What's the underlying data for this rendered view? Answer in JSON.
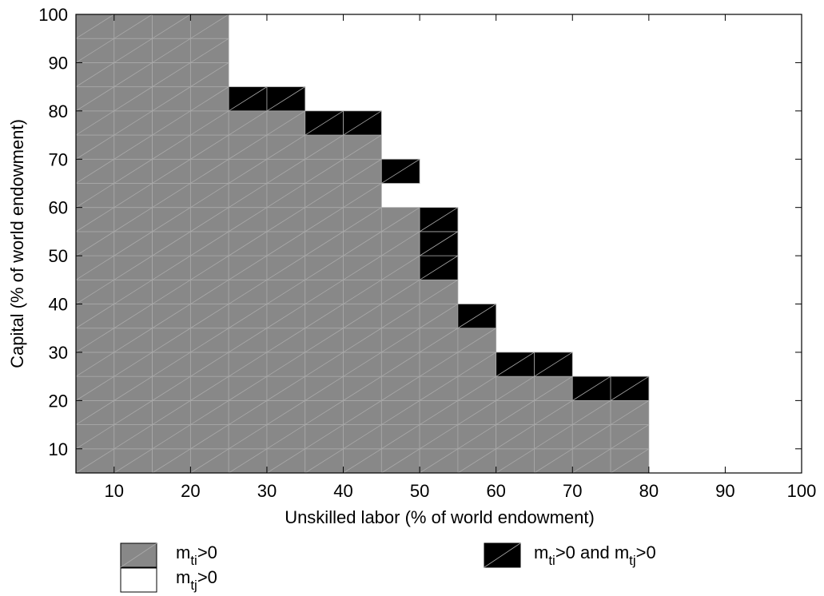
{
  "chart_data": {
    "type": "heatmap",
    "xlabel": "Unskilled labor (% of world endowment)",
    "ylabel": "Capital (% of world endowment)",
    "xlim": [
      5,
      100
    ],
    "ylim": [
      5,
      100
    ],
    "cell_size": 5,
    "x_ticks": [
      "10",
      "20",
      "30",
      "40",
      "50",
      "60",
      "70",
      "80",
      "90",
      "100"
    ],
    "y_ticks": [
      "10",
      "20",
      "30",
      "40",
      "50",
      "60",
      "70",
      "80",
      "90",
      "100"
    ],
    "legend": [
      {
        "key": "gray",
        "color": "#888888",
        "parts": [
          {
            "t": "m"
          },
          {
            "t": "ti",
            "sub": true
          },
          {
            "t": ">0"
          }
        ]
      },
      {
        "key": "white",
        "color": "#ffffff",
        "parts": [
          {
            "t": "m"
          },
          {
            "t": "tj",
            "sub": true
          },
          {
            "t": ">0"
          }
        ]
      },
      {
        "key": "black",
        "color": "#000000",
        "parts": [
          {
            "t": "m"
          },
          {
            "t": "ti",
            "sub": true
          },
          {
            "t": ">0 and m"
          },
          {
            "t": "tj",
            "sub": true
          },
          {
            "t": ">0"
          }
        ]
      }
    ],
    "gray_columns": [
      {
        "x": [
          5,
          25
        ],
        "top": 100
      },
      {
        "x": [
          25,
          35
        ],
        "top": 80
      },
      {
        "x": [
          35,
          45
        ],
        "top": 75
      },
      {
        "x": [
          45,
          50
        ],
        "top": 60
      },
      {
        "x": [
          50,
          55
        ],
        "top": 45
      },
      {
        "x": [
          55,
          60
        ],
        "top": 35
      },
      {
        "x": [
          60,
          70
        ],
        "top": 25
      },
      {
        "x": [
          70,
          80
        ],
        "top": 20
      }
    ],
    "black_blocks": [
      {
        "x": [
          25,
          35
        ],
        "y": [
          80,
          85
        ]
      },
      {
        "x": [
          35,
          45
        ],
        "y": [
          75,
          80
        ]
      },
      {
        "x": [
          45,
          50
        ],
        "y": [
          65,
          70
        ]
      },
      {
        "x": [
          50,
          55
        ],
        "y": [
          45,
          60
        ]
      },
      {
        "x": [
          55,
          60
        ],
        "y": [
          35,
          40
        ]
      },
      {
        "x": [
          60,
          70
        ],
        "y": [
          25,
          30
        ]
      },
      {
        "x": [
          70,
          80
        ],
        "y": [
          20,
          25
        ]
      }
    ]
  }
}
